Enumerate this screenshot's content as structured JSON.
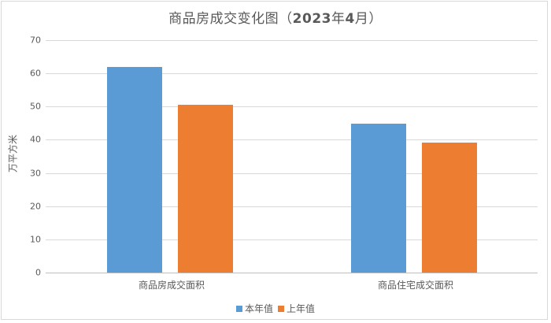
{
  "chart_data": {
    "type": "bar",
    "title": "商品房成交变化图（2023年4月）",
    "title_parts": {
      "prefix": "商品房成交变化图（",
      "year": "2023",
      "year_suffix": "年",
      "month": "4",
      "month_suffix": "月）"
    },
    "xlabel": "",
    "ylabel": "万平方米",
    "ylim": [
      0,
      70
    ],
    "yticks": [
      "0",
      "10",
      "20",
      "30",
      "40",
      "50",
      "60",
      "70"
    ],
    "grid": true,
    "legend_position": "bottom",
    "categories": [
      "商品房成交面积",
      "商品住宅成交面积"
    ],
    "series": [
      {
        "name": "本年值",
        "color": "#5b9bd5",
        "values": [
          62,
          44.8
        ]
      },
      {
        "name": "上年值",
        "color": "#ed7d31",
        "values": [
          50.6,
          39.1
        ]
      }
    ]
  }
}
